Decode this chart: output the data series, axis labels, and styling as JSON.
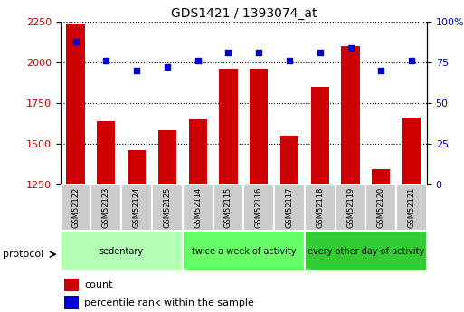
{
  "title": "GDS1421 / 1393074_at",
  "samples": [
    "GSM52122",
    "GSM52123",
    "GSM52124",
    "GSM52125",
    "GSM52114",
    "GSM52115",
    "GSM52116",
    "GSM52117",
    "GSM52118",
    "GSM52119",
    "GSM52120",
    "GSM52121"
  ],
  "counts": [
    2240,
    1640,
    1460,
    1580,
    1650,
    1960,
    1960,
    1550,
    1850,
    2100,
    1340,
    1660
  ],
  "percentiles": [
    88,
    76,
    70,
    72,
    76,
    81,
    81,
    76,
    81,
    84,
    70,
    76
  ],
  "ylim_left": [
    1250,
    2250
  ],
  "ylim_right": [
    0,
    100
  ],
  "yticks_left": [
    1250,
    1500,
    1750,
    2000,
    2250
  ],
  "yticks_right": [
    0,
    25,
    50,
    75,
    100
  ],
  "groups": [
    {
      "label": "sedentary",
      "start": 0,
      "end": 4,
      "color": "#b3ffb3"
    },
    {
      "label": "twice a week of activity",
      "start": 4,
      "end": 8,
      "color": "#66ff66"
    },
    {
      "label": "every other day of activity",
      "start": 8,
      "end": 12,
      "color": "#33cc33"
    }
  ],
  "bar_color": "#cc0000",
  "dot_color": "#0000cc",
  "grid_color": "#000000",
  "tick_color_left": "#cc0000",
  "tick_color_right": "#0000cc",
  "bar_width": 0.6,
  "baseline": 1250,
  "sample_box_color": "#cccccc",
  "legend_red_label": "count",
  "legend_blue_label": "percentile rank within the sample"
}
